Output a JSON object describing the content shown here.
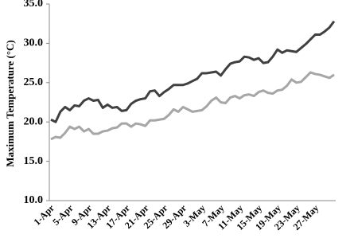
{
  "chart_data": {
    "type": "line",
    "y_label": "Maximum Temperature (°C)",
    "categories": [
      "1-Apr",
      null,
      null,
      null,
      "5-Apr",
      null,
      null,
      null,
      "9-Apr",
      null,
      null,
      null,
      "13-Apr",
      null,
      null,
      null,
      "17-Apr",
      null,
      null,
      null,
      "21-Apr",
      null,
      null,
      null,
      "25-Apr",
      null,
      null,
      null,
      "29-Apr",
      null,
      null,
      null,
      "3-May",
      null,
      null,
      null,
      "7-May",
      null,
      null,
      null,
      "11-May",
      null,
      null,
      null,
      "15-May",
      null,
      null,
      null,
      "19-May",
      null,
      null,
      null,
      "23-May",
      null,
      null,
      null,
      "27-May",
      null,
      null,
      null,
      null
    ],
    "series": [
      {
        "color": "#404040",
        "values": [
          20.3,
          20.0,
          21.3,
          21.9,
          21.5,
          22.1,
          22.0,
          22.7,
          23.0,
          22.7,
          22.8,
          21.8,
          22.2,
          21.8,
          21.9,
          21.4,
          21.5,
          22.3,
          22.7,
          22.9,
          23.0,
          23.9,
          24.0,
          23.3,
          23.8,
          24.2,
          24.7,
          24.7,
          24.7,
          24.9,
          25.2,
          25.5,
          26.2,
          26.2,
          26.3,
          26.4,
          25.9,
          26.7,
          27.4,
          27.6,
          27.7,
          28.3,
          28.2,
          27.9,
          28.1,
          27.5,
          27.6,
          28.3,
          29.2,
          28.8,
          29.1,
          29.0,
          28.9,
          29.4,
          29.9,
          30.5,
          31.1,
          31.1,
          31.5,
          32.0,
          32.8
        ]
      },
      {
        "color": "#a6a6a6",
        "values": [
          17.8,
          18.1,
          18.0,
          18.6,
          19.4,
          19.1,
          19.4,
          18.8,
          19.1,
          18.5,
          18.5,
          18.8,
          18.9,
          19.2,
          19.3,
          19.8,
          19.8,
          19.4,
          19.8,
          19.7,
          19.5,
          20.2,
          20.2,
          20.3,
          20.4,
          20.9,
          21.6,
          21.3,
          21.9,
          21.6,
          21.3,
          21.4,
          21.5,
          22.0,
          22.7,
          23.1,
          22.5,
          22.4,
          23.1,
          23.3,
          23.0,
          23.4,
          23.5,
          23.3,
          23.8,
          24.0,
          23.7,
          23.6,
          24.0,
          24.1,
          24.6,
          25.4,
          25.0,
          25.1,
          25.7,
          26.3,
          26.1,
          26.0,
          25.8,
          25.6,
          26.0
        ]
      }
    ],
    "ylim": [
      10,
      35
    ],
    "yticks": [
      {
        "value": 10,
        "label": "10.0"
      },
      {
        "value": 15,
        "label": "15.0"
      },
      {
        "value": 20,
        "label": "20.0"
      },
      {
        "value": 25,
        "label": "25.0"
      },
      {
        "value": 30,
        "label": "30.0"
      },
      {
        "value": 35,
        "label": "35.0"
      }
    ],
    "grid": false
  }
}
